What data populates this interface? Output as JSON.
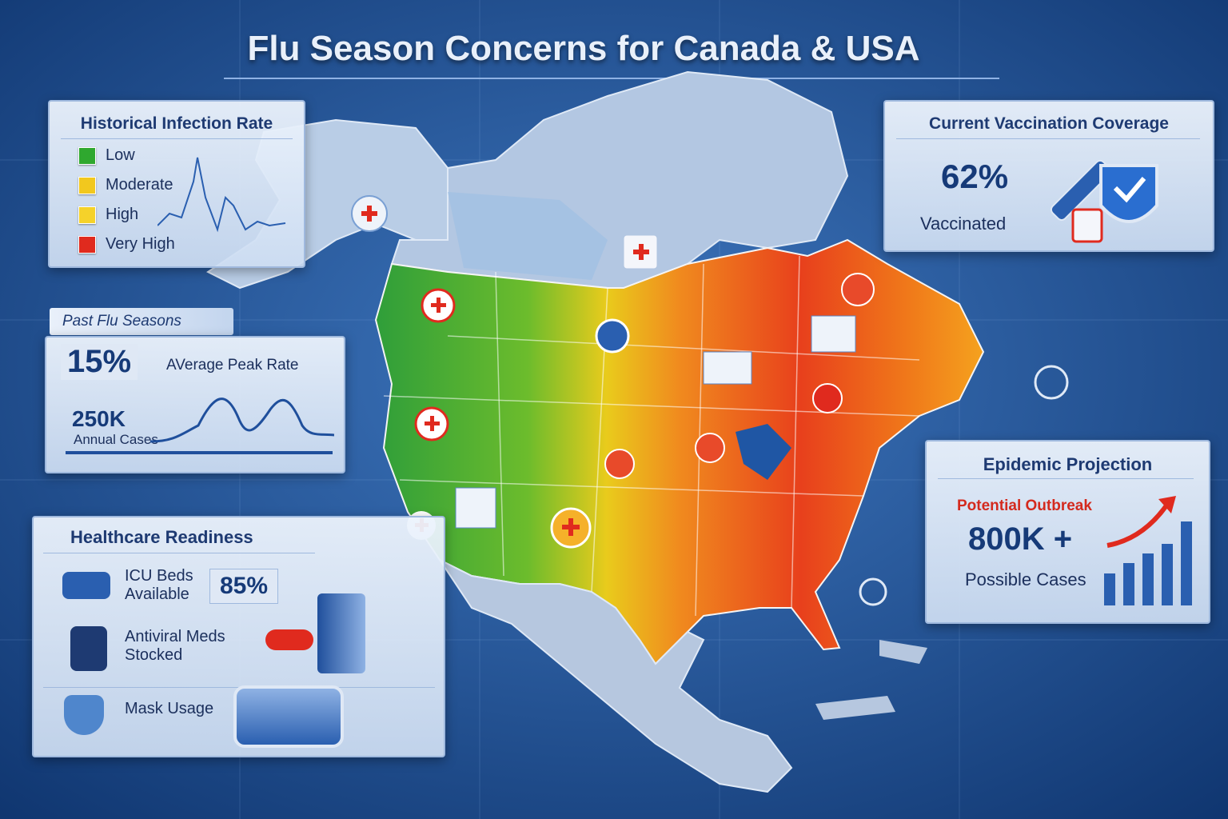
{
  "header": {
    "title": "Flu Season Concerns for Canada & USA"
  },
  "historical_infection_rate": {
    "title": "Historical Infection Rate",
    "legend": [
      {
        "label": "Low",
        "color": "#2fa82f"
      },
      {
        "label": "Moderate",
        "color": "#f2c81e"
      },
      {
        "label": "High",
        "color": "#f5d22a"
      },
      {
        "label": "Very High",
        "color": "#e02a1e"
      }
    ]
  },
  "past_flu_seasons": {
    "title": "Past Flu Seasons",
    "peak_rate": "15%",
    "peak_rate_label": "AVerage Peak Rate",
    "annual_cases": "250K",
    "annual_cases_label": "Annual Cases"
  },
  "healthcare_readiness": {
    "title": "Healthcare Readiness",
    "items": [
      {
        "label": "ICU Beds Available",
        "value": "85%"
      },
      {
        "label": "Antiviral Meds Stocked"
      },
      {
        "label": "Mask Usage"
      }
    ]
  },
  "vaccination_coverage": {
    "title": "Current Vaccination Coverage",
    "value": "62%",
    "label": "Vaccinated"
  },
  "epidemic_projection": {
    "title": "Epidemic Projection",
    "subtitle": "Potential Outbreak",
    "value": "800K +",
    "label": "Possible Cases"
  }
}
